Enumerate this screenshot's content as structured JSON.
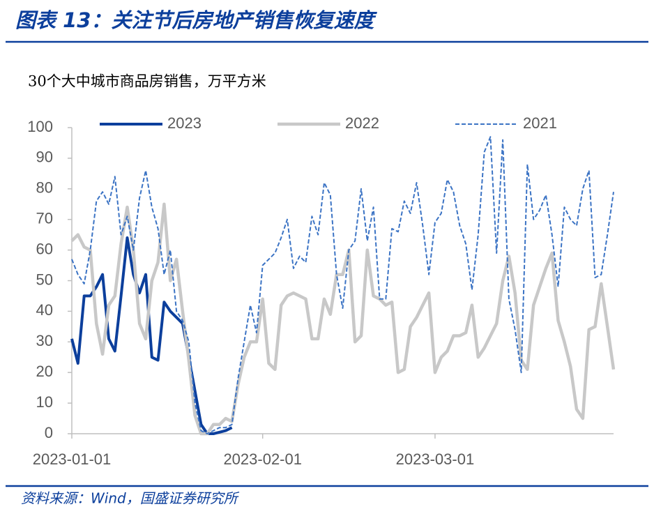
{
  "chart_data": {
    "type": "line",
    "title": "图表 13：关注节后房地产销售恢复速度",
    "y_label": "30个大中城市商品房销售，万平方米",
    "source": "资料来源：Wind，国盛证券研究所",
    "x": [
      "2023-01-01",
      "2023-01-02",
      "2023-01-03",
      "2023-01-04",
      "2023-01-05",
      "2023-01-06",
      "2023-01-07",
      "2023-01-08",
      "2023-01-09",
      "2023-01-10",
      "2023-01-11",
      "2023-01-12",
      "2023-01-13",
      "2023-01-14",
      "2023-01-15",
      "2023-01-16",
      "2023-01-17",
      "2023-01-18",
      "2023-01-19",
      "2023-01-20",
      "2023-01-21",
      "2023-01-22",
      "2023-01-23",
      "2023-01-24",
      "2023-01-25",
      "2023-01-26",
      "2023-01-27",
      "2023-01-28",
      "2023-01-29",
      "2023-01-30",
      "2023-01-31",
      "2023-02-01",
      "2023-02-02",
      "2023-02-03",
      "2023-02-04",
      "2023-02-05",
      "2023-02-06",
      "2023-02-07",
      "2023-02-08",
      "2023-02-09",
      "2023-02-10",
      "2023-02-11",
      "2023-02-12",
      "2023-02-13",
      "2023-02-14",
      "2023-02-15",
      "2023-02-16",
      "2023-02-17",
      "2023-02-18",
      "2023-02-19",
      "2023-02-20",
      "2023-02-21",
      "2023-02-22",
      "2023-02-23",
      "2023-02-24",
      "2023-02-25",
      "2023-02-26",
      "2023-02-27",
      "2023-02-28",
      "2023-03-01",
      "2023-03-02",
      "2023-03-03",
      "2023-03-04",
      "2023-03-05",
      "2023-03-06",
      "2023-03-07",
      "2023-03-08",
      "2023-03-09",
      "2023-03-10",
      "2023-03-11",
      "2023-03-12",
      "2023-03-13",
      "2023-03-14",
      "2023-03-15",
      "2023-03-16",
      "2023-03-17",
      "2023-03-18",
      "2023-03-19",
      "2023-03-20",
      "2023-03-21",
      "2023-03-22",
      "2023-03-23",
      "2023-03-24",
      "2023-03-25",
      "2023-03-26",
      "2023-03-27",
      "2023-03-28",
      "2023-03-29",
      "2023-03-30"
    ],
    "series": [
      {
        "name": "2023",
        "color": "#0c3f9c",
        "width": 4,
        "dash": false,
        "values": [
          31,
          23,
          45,
          45,
          48,
          52,
          31,
          27,
          45,
          64,
          52,
          46,
          52,
          25,
          24,
          43,
          40,
          38,
          36,
          25,
          14,
          3,
          0,
          0,
          0.5,
          1,
          2,
          null,
          null,
          null,
          null,
          null,
          null,
          null,
          null,
          null,
          null,
          null,
          null,
          null,
          null,
          null,
          null,
          null,
          null,
          null,
          null,
          null,
          null,
          null,
          null,
          null,
          null,
          null,
          null,
          null,
          null,
          null,
          null,
          null,
          null,
          null,
          null,
          null,
          null,
          null,
          null,
          null,
          null,
          null,
          null,
          null,
          null,
          null,
          null,
          null,
          null,
          null,
          null,
          null,
          null,
          null,
          null,
          null,
          null,
          null,
          null,
          null,
          null
        ]
      },
      {
        "name": "2022",
        "color": "#c8c8c8",
        "width": 4.5,
        "dash": false,
        "values": [
          63,
          65,
          61,
          60,
          36,
          26,
          42,
          45,
          62,
          74,
          60,
          36,
          31,
          50,
          56,
          75,
          50,
          57,
          40,
          24,
          6,
          0,
          0,
          3,
          3,
          5,
          4,
          16,
          25,
          30,
          30,
          44,
          23,
          21,
          42,
          45,
          46,
          45,
          44,
          31,
          31,
          44,
          39,
          52,
          52,
          60,
          30,
          32,
          60,
          45,
          44,
          42,
          43,
          20,
          21,
          35,
          38,
          42,
          46,
          20,
          25,
          27,
          32,
          32,
          33,
          42,
          25,
          28,
          32,
          36,
          50,
          58,
          46,
          24,
          21,
          42,
          48,
          54,
          59,
          37,
          30,
          22,
          8,
          5,
          34,
          35,
          49,
          35,
          21
        ]
      },
      {
        "name": "2021",
        "color": "#3b73c4",
        "width": 2,
        "dash": true,
        "values": [
          57,
          52,
          49,
          60,
          76,
          79,
          75,
          84,
          65,
          71,
          60,
          77,
          86,
          74,
          67,
          52,
          60,
          40,
          37,
          30,
          10,
          1,
          0,
          1,
          2,
          2,
          3,
          18,
          30,
          42,
          33,
          55,
          57,
          59,
          64,
          70,
          54,
          58,
          56,
          71,
          65,
          82,
          78,
          52,
          41,
          60,
          63,
          80,
          63,
          74,
          44,
          44,
          67,
          66,
          76,
          72,
          82,
          68,
          52,
          69,
          72,
          83,
          79,
          68,
          62,
          47,
          65,
          92,
          97,
          59,
          96,
          44,
          34,
          20,
          88,
          70,
          73,
          78,
          65,
          48,
          74,
          70,
          68,
          80,
          86,
          51,
          52,
          65,
          79
        ]
      }
    ],
    "xlim": [
      "2023-01-01",
      "2023-03-30"
    ],
    "xticks": [
      "2023-01-01",
      "2023-02-01",
      "2023-03-01"
    ],
    "ylim": [
      0,
      100
    ],
    "yticks": [
      0,
      10,
      20,
      30,
      40,
      50,
      60,
      70,
      80,
      90,
      100
    ],
    "grid": false,
    "legend": "top"
  }
}
